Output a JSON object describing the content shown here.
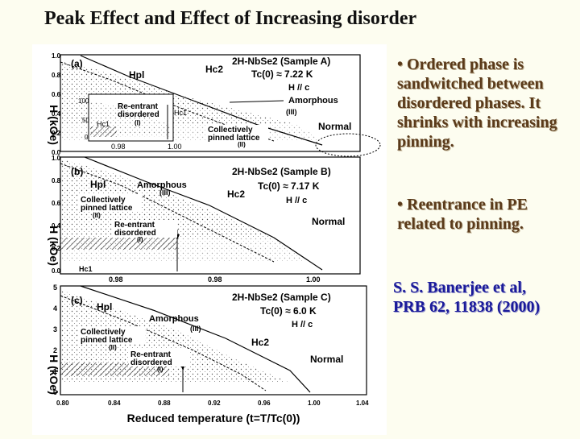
{
  "slide_title": "Peak Effect and Effect of Increasing disorder",
  "bullets": [
    "• Ordered phase is sandwitched between disordered phases. It shrinks with increasing pinning.",
    "• Reentrance in PE related to pinning."
  ],
  "citation": {
    "line1": "S. S. Banerjee et al,",
    "line2": "PRB 62, 11838 (2000)"
  },
  "figure": {
    "ylabel": "H (kOe)",
    "xlabel": "Reduced temperature (t=T/Tc(0))",
    "panels": [
      {
        "tag": "(a)",
        "sample": "2H-NbSe2 (Sample A)",
        "tc": "Tc(0) ≈ 7.22 K",
        "field": "H // c",
        "yticks": [
          "0.0",
          "0.2",
          "0.4",
          "0.6",
          "0.8",
          "1.0"
        ],
        "labels": {
          "hpl": "Hpl",
          "hc2": "Hc2",
          "amorphous": "Amorphous",
          "iii": "(III)",
          "normal": "Normal",
          "collective": "Collectively pinned lattice",
          "ii": "(II)",
          "reentrant": "Re-entrant disordered",
          "i": "(I)",
          "hc1": "Hc1"
        },
        "inset": {
          "yticks": [
            "100",
            "50",
            "0"
          ],
          "xticks": [
            "0.98",
            "1.00"
          ],
          "hc1": "Hc1",
          "hc1b": "Hc1"
        }
      },
      {
        "tag": "(b)",
        "sample": "2H-NbSe2 (Sample B)",
        "tc": "Tc(0) ≈ 7.17 K",
        "field": "H // c",
        "yticks": [
          "0.0",
          "0.2",
          "0.4",
          "0.6",
          "0.8",
          "1.0"
        ],
        "xticks": [
          "0.98",
          "0.98",
          "1.00"
        ],
        "labels": {
          "hpl": "Hpl",
          "hc2": "Hc2",
          "amorphous": "Amorphous",
          "iii": "(III)",
          "normal": "Normal",
          "collective": "Collectively pinned lattice",
          "ii": "(II)",
          "reentrant": "Re-entrant disordered",
          "i": "(I)",
          "hc1": "Hc1"
        }
      },
      {
        "tag": "(c)",
        "sample": "2H-NbSe2 (Sample C)",
        "tc": "Tc(0) ≈ 6.0 K",
        "field": "H // c",
        "yticks": [
          "0",
          "1",
          "2",
          "3",
          "4",
          "5"
        ],
        "xticks": [
          "0.80",
          "0.84",
          "0.88",
          "0.92",
          "0.96",
          "1.00",
          "1.04"
        ],
        "labels": {
          "hpl": "Hpl",
          "hc2": "Hc2",
          "amorphous": "Amorphous",
          "iii": "(III)",
          "normal": "Normal",
          "collective": "Collectively pinned lattice",
          "ii": "(II)",
          "reentrant": "Re-entrant disordered",
          "i": "(I)"
        }
      }
    ]
  },
  "colors": {
    "background": "#fdfdf0",
    "bullet_text": "#5a3a1a",
    "citation_text": "#1a1a9a"
  }
}
